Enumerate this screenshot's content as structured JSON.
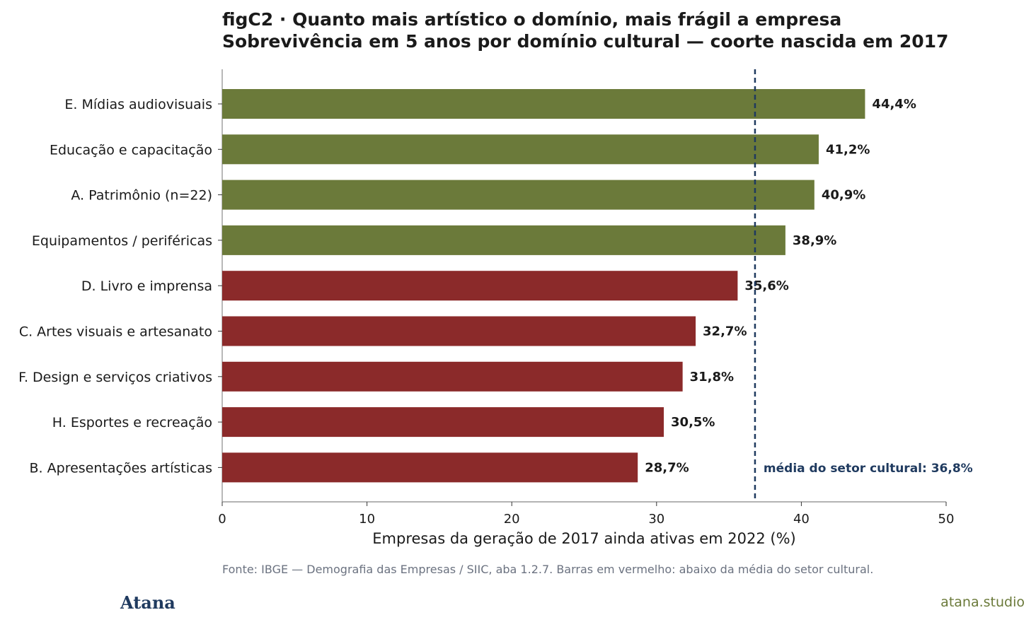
{
  "title_line1": "figC2 · Quanto mais artístico o domínio, mais frágil a empresa",
  "title_line2": "Sobrevivência em 5 anos por domínio cultural — coorte nascida em 2017",
  "source": "Fonte: IBGE — Demografia das Empresas / SIIC, aba 1.2.7. Barras em vermelho: abaixo da média do setor cultural.",
  "brand": "Atana",
  "site": "atana.studio",
  "colors": {
    "above": "#6b7a3a",
    "below": "#8b2a2a",
    "mean_line": "#1f3a5f",
    "text": "#1a1a1a"
  },
  "chart_data": {
    "type": "bar",
    "orientation": "horizontal",
    "categories": [
      "E. Mídias audiovisuais",
      "Educação e capacitação",
      "A. Patrimônio (n=22)",
      "Equipamentos / periféricas",
      "D. Livro e imprensa",
      "C. Artes visuais e artesanato",
      "F. Design e serviços criativos",
      "H. Esportes e recreação",
      "B. Apresentações artísticas"
    ],
    "values": [
      44.4,
      41.2,
      40.9,
      38.9,
      35.6,
      32.7,
      31.8,
      30.5,
      28.7
    ],
    "value_labels": [
      "44,4%",
      "41,2%",
      "40,9%",
      "38,9%",
      "35,6%",
      "32,7%",
      "31,8%",
      "30,5%",
      "28,7%"
    ],
    "xlabel": "Empresas da geração de 2017 ainda ativas em 2022 (%)",
    "ylabel": "",
    "xlim": [
      0,
      50
    ],
    "xticks": [
      0,
      10,
      20,
      30,
      40,
      50
    ],
    "xtick_labels": [
      "0",
      "10",
      "20",
      "30",
      "40",
      "50"
    ],
    "mean_value": 36.8,
    "mean_label": "média do setor cultural: 36,8%",
    "grid": false
  }
}
